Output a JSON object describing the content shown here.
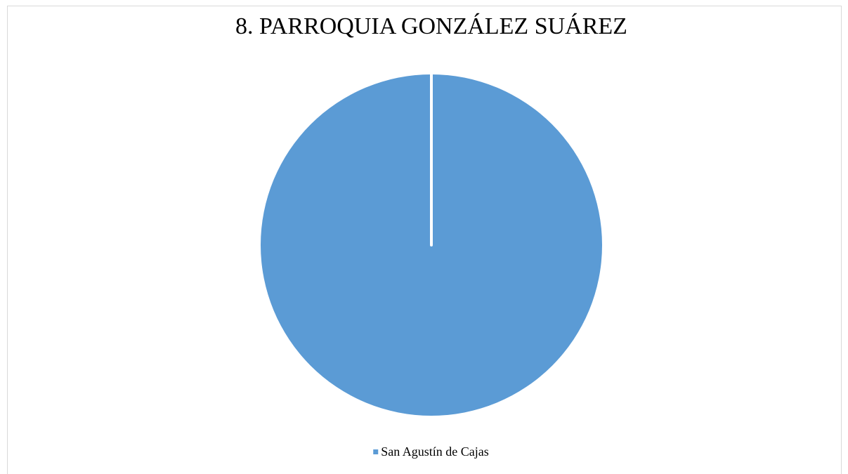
{
  "chart_data": {
    "type": "pie",
    "title": "8. PARROQUIA GONZÁLEZ SUÁREZ",
    "categories": [
      "San Agustín de Cajas"
    ],
    "values": [
      100
    ],
    "colors": [
      "#5b9bd5"
    ],
    "legend": "bottom"
  }
}
